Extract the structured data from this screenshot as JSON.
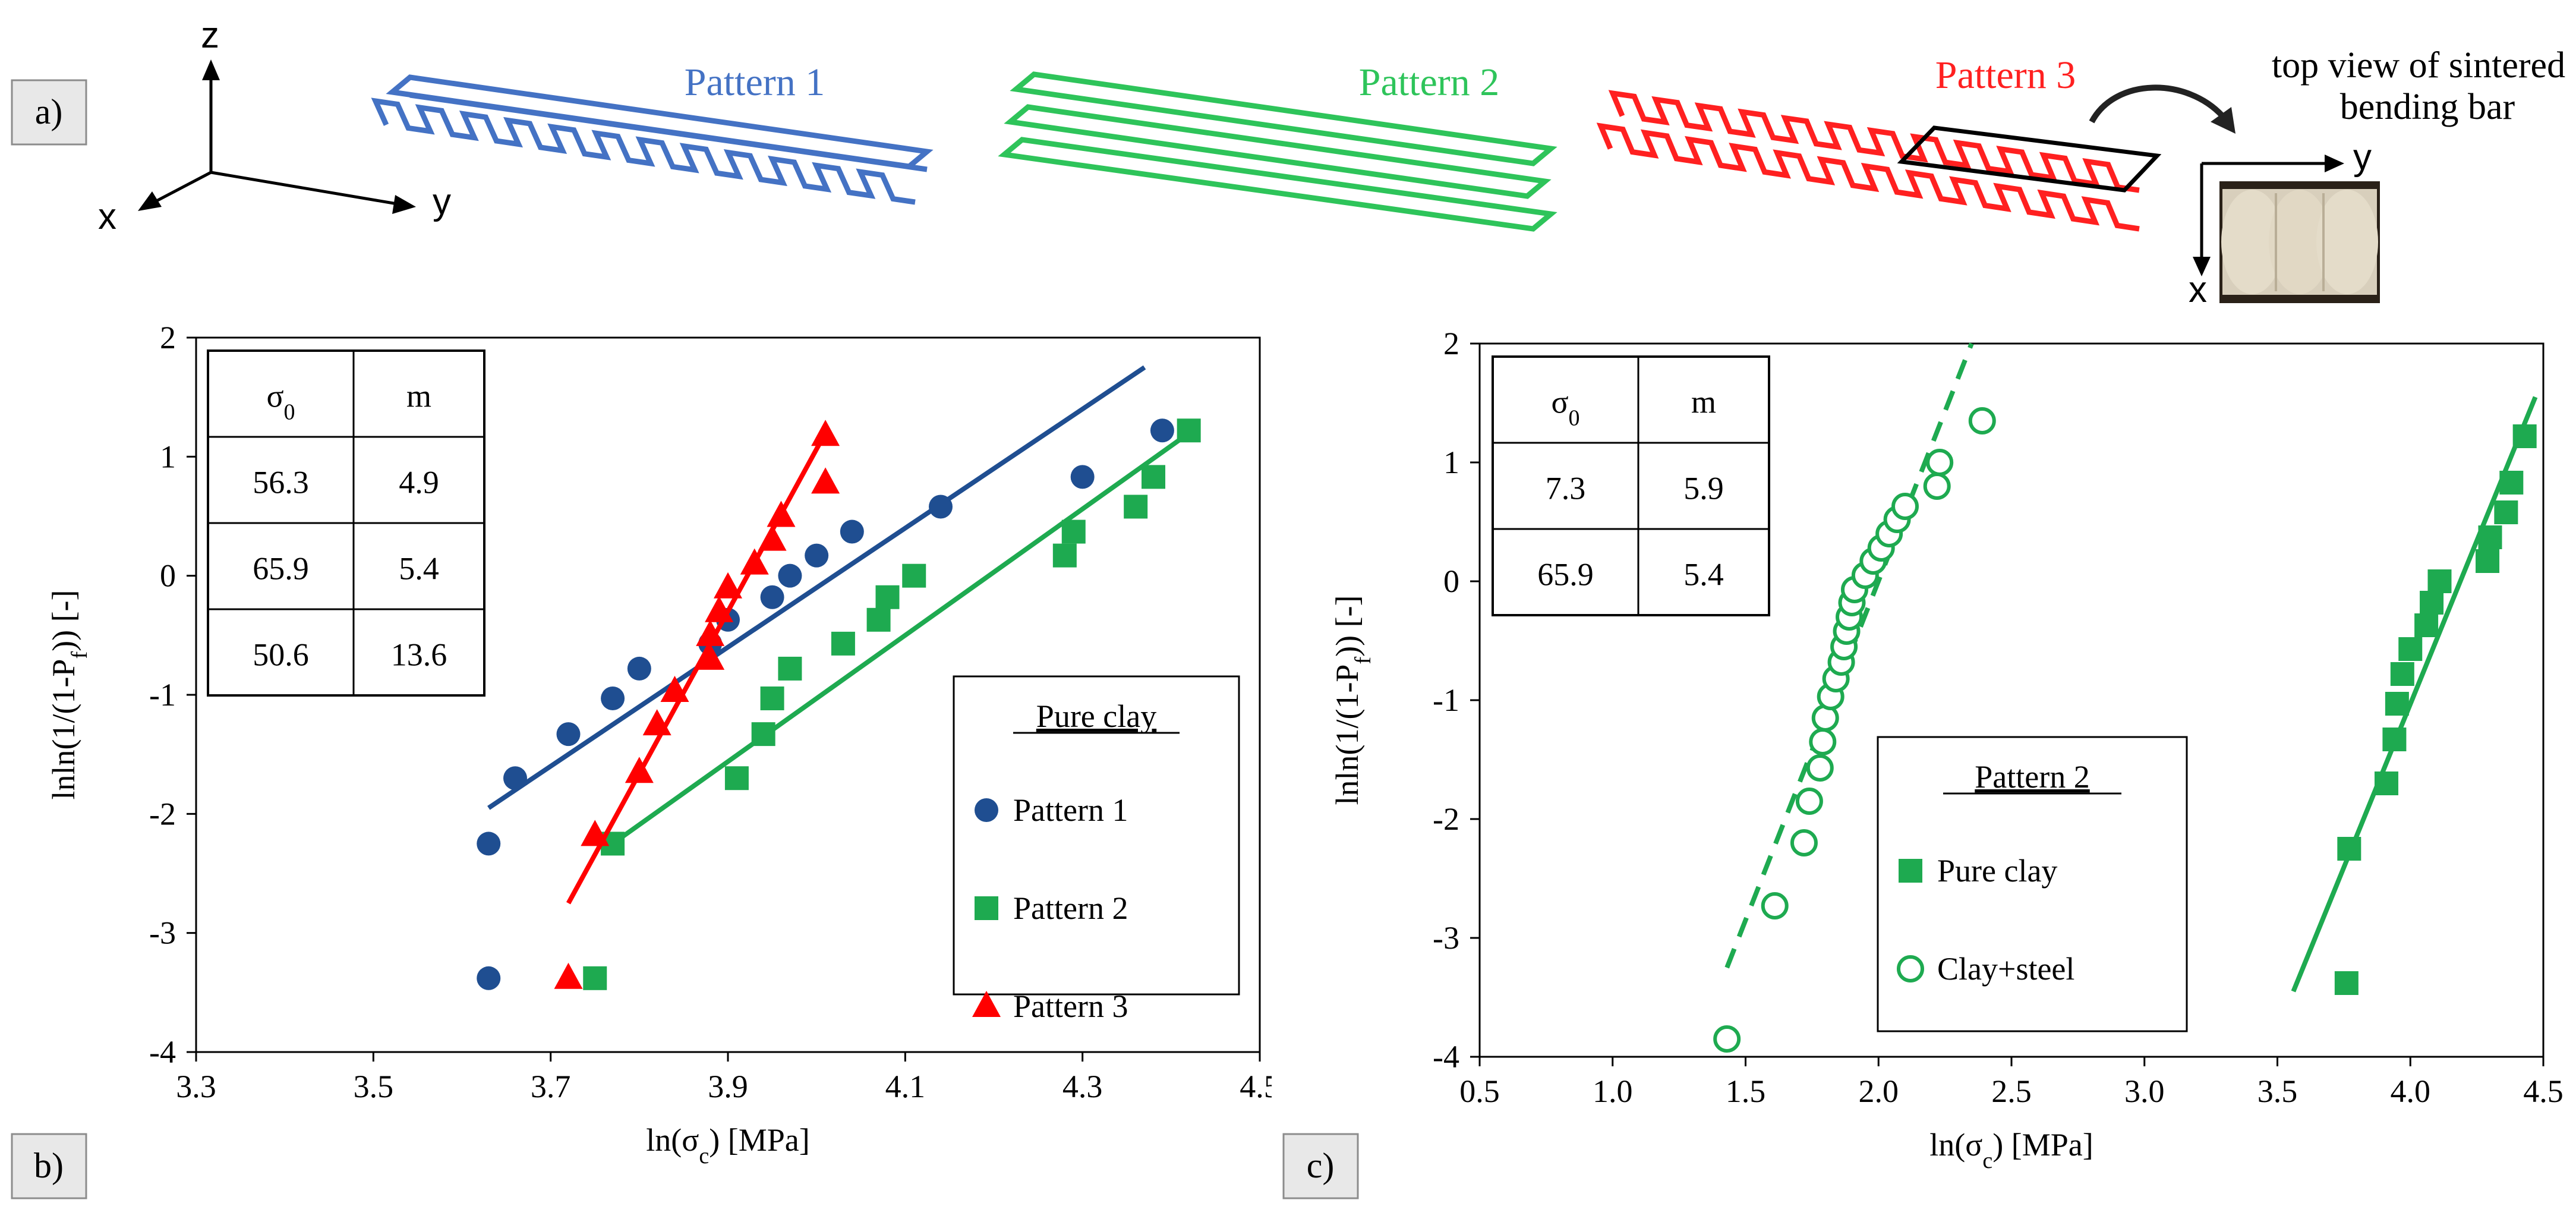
{
  "panels": {
    "a": {
      "label": "a)",
      "axes": {
        "z": "z",
        "x": "x",
        "y": "y"
      },
      "patterns": [
        {
          "name": "Pattern 1",
          "color": "#4472C4"
        },
        {
          "name": "Pattern 2",
          "color": "#2EC45A"
        },
        {
          "name": "Pattern 3",
          "color": "#FF2020"
        }
      ],
      "photo_caption_line1": "top view of sintered",
      "photo_caption_line2": "bending bar",
      "photo_axes": {
        "x": "x",
        "y": "y"
      }
    },
    "b": {
      "label": "b)"
    },
    "c": {
      "label": "c)"
    }
  },
  "colors": {
    "pattern1": "#1F4E91",
    "pattern2": "#1EAA50",
    "pattern3": "#FF0000",
    "clay_steel": "#1EAA50"
  },
  "chart_data": [
    {
      "id": "b",
      "type": "scatter",
      "xlabel": "ln(σc) [MPa]",
      "ylabel": "lnln(1/(1-Pf)) [-]",
      "xlim": [
        3.3,
        4.5
      ],
      "ylim": [
        -4,
        2
      ],
      "xticks": [
        "3.3",
        "3.5",
        "3.7",
        "3.9",
        "4.1",
        "4.3",
        "4.5"
      ],
      "yticks": [
        "2",
        "1",
        "0",
        "-1",
        "-2",
        "-3",
        "-4"
      ],
      "legend_title": "Pure clay",
      "legend_position": "bottom-right",
      "table": {
        "headers": [
          "σ0",
          "m"
        ],
        "rows": [
          {
            "sigma0": "56.3",
            "m": "4.9",
            "color": "#1F4E91"
          },
          {
            "sigma0": "65.9",
            "m": "5.4",
            "color": "#1EAA50"
          },
          {
            "sigma0": "50.6",
            "m": "13.6",
            "color": "#FF0000"
          }
        ]
      },
      "series": [
        {
          "name": "Pattern 1",
          "marker": "circle",
          "color": "#1F4E91",
          "points": [
            [
              3.63,
              -3.38
            ],
            [
              3.63,
              -2.25
            ],
            [
              3.66,
              -1.7
            ],
            [
              3.72,
              -1.33
            ],
            [
              3.77,
              -1.03
            ],
            [
              3.8,
              -0.78
            ],
            [
              3.88,
              -0.57
            ],
            [
              3.9,
              -0.37
            ],
            [
              3.95,
              -0.18
            ],
            [
              3.97,
              0
            ],
            [
              4.0,
              0.17
            ],
            [
              4.04,
              0.37
            ],
            [
              4.14,
              0.58
            ],
            [
              4.3,
              0.83
            ],
            [
              4.39,
              1.22
            ]
          ],
          "fit": [
            [
              3.63,
              -1.95
            ],
            [
              4.37,
              1.75
            ]
          ]
        },
        {
          "name": "Pattern 2",
          "marker": "square",
          "color": "#1EAA50",
          "points": [
            [
              3.75,
              -3.38
            ],
            [
              3.77,
              -2.25
            ],
            [
              3.91,
              -1.7
            ],
            [
              3.94,
              -1.33
            ],
            [
              3.95,
              -1.03
            ],
            [
              3.97,
              -0.78
            ],
            [
              4.03,
              -0.57
            ],
            [
              4.07,
              -0.37
            ],
            [
              4.08,
              -0.18
            ],
            [
              4.11,
              0
            ],
            [
              4.28,
              0.17
            ],
            [
              4.29,
              0.37
            ],
            [
              4.36,
              0.58
            ],
            [
              4.38,
              0.83
            ],
            [
              4.42,
              1.22
            ]
          ],
          "fit": [
            [
              3.77,
              -2.25
            ],
            [
              4.43,
              1.25
            ]
          ]
        },
        {
          "name": "Pattern 3",
          "marker": "triangle",
          "color": "#FF0000",
          "points": [
            [
              3.72,
              -3.38
            ],
            [
              3.75,
              -2.18
            ],
            [
              3.8,
              -1.65
            ],
            [
              3.82,
              -1.25
            ],
            [
              3.84,
              -0.97
            ],
            [
              3.88,
              -0.7
            ],
            [
              3.88,
              -0.5
            ],
            [
              3.89,
              -0.3
            ],
            [
              3.9,
              -0.1
            ],
            [
              3.93,
              0.1
            ],
            [
              3.95,
              0.3
            ],
            [
              3.96,
              0.5
            ],
            [
              4.01,
              0.78
            ],
            [
              4.01,
              1.18
            ]
          ],
          "fit": [
            [
              3.72,
              -2.75
            ],
            [
              4.01,
              1.2
            ]
          ]
        }
      ]
    },
    {
      "id": "c",
      "type": "scatter",
      "xlabel": "ln(σc) [MPa]",
      "ylabel": "lnln(1/(1-Pf)) [-]",
      "xlim": [
        0.5,
        4.5
      ],
      "ylim": [
        -4,
        2
      ],
      "xticks": [
        "0.5",
        "1.0",
        "1.5",
        "2.0",
        "2.5",
        "3.0",
        "3.5",
        "4.0",
        "4.5"
      ],
      "yticks": [
        "2",
        "1",
        "0",
        "-1",
        "-2",
        "-3",
        "-4"
      ],
      "legend_title": "Pattern 2",
      "legend_position": "bottom-center",
      "table": {
        "headers": [
          "σ0",
          "m"
        ],
        "rows": [
          {
            "sigma0": "7.3",
            "m": "5.9",
            "color": "#1EAA50"
          },
          {
            "sigma0": "65.9",
            "m": "5.4",
            "color": "#1EAA50"
          }
        ]
      },
      "series": [
        {
          "name": "Pure clay",
          "marker": "square",
          "color": "#1EAA50",
          "points": [
            [
              3.76,
              -3.38
            ],
            [
              3.77,
              -2.25
            ],
            [
              3.91,
              -1.7
            ],
            [
              3.94,
              -1.33
            ],
            [
              3.95,
              -1.03
            ],
            [
              3.97,
              -0.78
            ],
            [
              4.0,
              -0.57
            ],
            [
              4.06,
              -0.37
            ],
            [
              4.08,
              -0.18
            ],
            [
              4.11,
              0
            ],
            [
              4.29,
              0.17
            ],
            [
              4.3,
              0.37
            ],
            [
              4.36,
              0.58
            ],
            [
              4.38,
              0.83
            ],
            [
              4.43,
              1.22
            ]
          ],
          "fit": [
            [
              3.56,
              -3.45
            ],
            [
              4.47,
              1.55
            ]
          ],
          "fit_style": "solid"
        },
        {
          "name": "Clay+steel",
          "marker": "open-circle",
          "color": "#1EAA50",
          "points": [
            [
              1.43,
              -3.85
            ],
            [
              1.61,
              -2.73
            ],
            [
              1.72,
              -2.2
            ],
            [
              1.74,
              -1.85
            ],
            [
              1.78,
              -1.57
            ],
            [
              1.79,
              -1.35
            ],
            [
              1.8,
              -1.15
            ],
            [
              1.82,
              -0.97
            ],
            [
              1.84,
              -0.82
            ],
            [
              1.86,
              -0.68
            ],
            [
              1.87,
              -0.55
            ],
            [
              1.88,
              -0.42
            ],
            [
              1.89,
              -0.3
            ],
            [
              1.9,
              -0.18
            ],
            [
              1.91,
              -0.07
            ],
            [
              1.95,
              0.05
            ],
            [
              1.98,
              0.17
            ],
            [
              2.01,
              0.28
            ],
            [
              2.04,
              0.4
            ],
            [
              2.07,
              0.52
            ],
            [
              2.1,
              0.63
            ],
            [
              2.22,
              0.8
            ],
            [
              2.23,
              1.0
            ],
            [
              2.39,
              1.35
            ]
          ],
          "fit": [
            [
              1.43,
              -3.25
            ],
            [
              2.35,
              2.0
            ]
          ],
          "fit_style": "dashed"
        }
      ]
    }
  ]
}
